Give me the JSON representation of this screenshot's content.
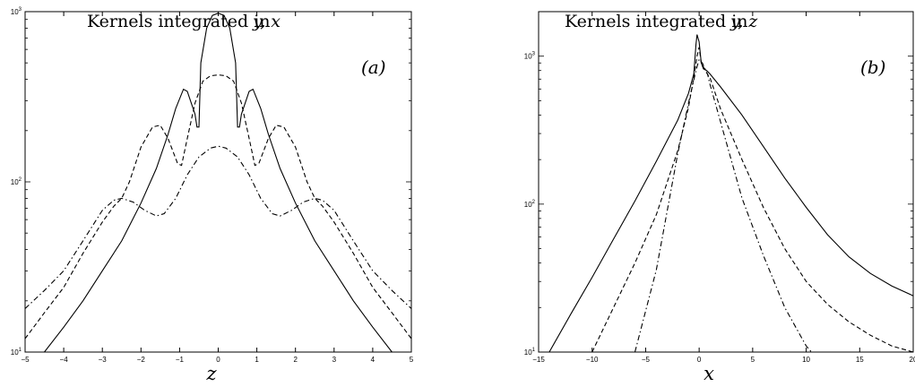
{
  "chart_data": [
    {
      "type": "line",
      "title_text": "Kernels integrated in ",
      "title_math": "y, x",
      "panel_label": "(a)",
      "xlabel": "z",
      "xlim": [
        -5,
        5
      ],
      "ylim": [
        10,
        1000
      ],
      "yscale": "log",
      "xticks": [
        -5,
        -4,
        -3,
        -2,
        -1,
        0,
        1,
        2,
        3,
        4,
        5
      ],
      "yticks": [
        {
          "value": 10,
          "base": "10",
          "exp": "1"
        },
        {
          "value": 100,
          "base": "10",
          "exp": "2"
        },
        {
          "value": 1000,
          "base": "10",
          "exp": "3"
        }
      ],
      "series": [
        {
          "style": "solid",
          "points": [
            [
              -4.5,
              10
            ],
            [
              -4,
              14
            ],
            [
              -3.5,
              20
            ],
            [
              -3,
              30
            ],
            [
              -2.5,
              45
            ],
            [
              -2,
              75
            ],
            [
              -1.6,
              120
            ],
            [
              -1.3,
              190
            ],
            [
              -1.1,
              270
            ],
            [
              -0.9,
              350
            ],
            [
              -0.8,
              340
            ],
            [
              -0.6,
              250
            ],
            [
              -0.55,
              210
            ],
            [
              -0.5,
              210
            ],
            [
              -0.45,
              500
            ],
            [
              -0.3,
              800
            ],
            [
              -0.15,
              950
            ],
            [
              0,
              980
            ],
            [
              0.15,
              950
            ],
            [
              0.3,
              800
            ],
            [
              0.45,
              500
            ],
            [
              0.5,
              210
            ],
            [
              0.55,
              210
            ],
            [
              0.6,
              250
            ],
            [
              0.8,
              340
            ],
            [
              0.9,
              350
            ],
            [
              1.1,
              270
            ],
            [
              1.3,
              190
            ],
            [
              1.6,
              120
            ],
            [
              2,
              75
            ],
            [
              2.5,
              45
            ],
            [
              3,
              30
            ],
            [
              3.5,
              20
            ],
            [
              4,
              14
            ],
            [
              4.5,
              10
            ]
          ]
        },
        {
          "style": "dashed",
          "points": [
            [
              -5,
              12
            ],
            [
              -4.5,
              17
            ],
            [
              -4,
              24
            ],
            [
              -3.5,
              38
            ],
            [
              -3,
              58
            ],
            [
              -2.7,
              72
            ],
            [
              -2.5,
              80
            ],
            [
              -2.3,
              100
            ],
            [
              -2,
              160
            ],
            [
              -1.7,
              210
            ],
            [
              -1.5,
              215
            ],
            [
              -1.3,
              180
            ],
            [
              -1.05,
              128
            ],
            [
              -0.95,
              125
            ],
            [
              -0.8,
              180
            ],
            [
              -0.6,
              290
            ],
            [
              -0.4,
              390
            ],
            [
              -0.2,
              420
            ],
            [
              0,
              425
            ],
            [
              0.2,
              420
            ],
            [
              0.4,
              390
            ],
            [
              0.6,
              290
            ],
            [
              0.8,
              180
            ],
            [
              0.95,
              125
            ],
            [
              1.05,
              128
            ],
            [
              1.3,
              180
            ],
            [
              1.5,
              215
            ],
            [
              1.7,
              210
            ],
            [
              2,
              160
            ],
            [
              2.3,
              100
            ],
            [
              2.5,
              80
            ],
            [
              2.7,
              72
            ],
            [
              3,
              58
            ],
            [
              3.5,
              38
            ],
            [
              4,
              24
            ],
            [
              4.5,
              17
            ],
            [
              5,
              12
            ]
          ]
        },
        {
          "style": "dashdot",
          "points": [
            [
              -5,
              18
            ],
            [
              -4.5,
              23
            ],
            [
              -4,
              30
            ],
            [
              -3.5,
              45
            ],
            [
              -3,
              68
            ],
            [
              -2.7,
              78
            ],
            [
              -2.5,
              80
            ],
            [
              -2.2,
              76
            ],
            [
              -1.9,
              68
            ],
            [
              -1.6,
              63
            ],
            [
              -1.4,
              65
            ],
            [
              -1.1,
              80
            ],
            [
              -0.8,
              110
            ],
            [
              -0.5,
              140
            ],
            [
              -0.2,
              158
            ],
            [
              0,
              162
            ],
            [
              0.2,
              158
            ],
            [
              0.5,
              140
            ],
            [
              0.8,
              110
            ],
            [
              1.1,
              80
            ],
            [
              1.4,
              65
            ],
            [
              1.6,
              63
            ],
            [
              1.9,
              68
            ],
            [
              2.2,
              76
            ],
            [
              2.5,
              80
            ],
            [
              2.7,
              78
            ],
            [
              3,
              68
            ],
            [
              3.5,
              45
            ],
            [
              4,
              30
            ],
            [
              4.5,
              23
            ],
            [
              5,
              18
            ]
          ]
        }
      ]
    },
    {
      "type": "line",
      "title_text": "Kernels integrated in ",
      "title_math": "y, z",
      "panel_label": "(b)",
      "xlabel": "x",
      "xlim": [
        -15,
        20
      ],
      "ylim": [
        10,
        2000
      ],
      "yscale": "log",
      "xticks": [
        -15,
        -10,
        -5,
        0,
        5,
        10,
        15,
        20
      ],
      "yticks": [
        {
          "value": 10,
          "base": "10",
          "exp": "1"
        },
        {
          "value": 100,
          "base": "10",
          "exp": "2"
        },
        {
          "value": 1000,
          "base": "10",
          "exp": "3"
        }
      ],
      "series": [
        {
          "style": "solid",
          "points": [
            [
              -14,
              10
            ],
            [
              -12,
              18
            ],
            [
              -10,
              32
            ],
            [
              -8,
              58
            ],
            [
              -6,
              105
            ],
            [
              -4,
              195
            ],
            [
              -2,
              370
            ],
            [
              -1,
              560
            ],
            [
              -0.5,
              760
            ],
            [
              -0.3,
              1200
            ],
            [
              -0.2,
              1400
            ],
            [
              0,
              1250
            ],
            [
              0.2,
              900
            ],
            [
              0.4,
              820
            ],
            [
              0.7,
              800
            ],
            [
              1,
              760
            ],
            [
              2,
              620
            ],
            [
              4,
              400
            ],
            [
              6,
              245
            ],
            [
              8,
              150
            ],
            [
              10,
              95
            ],
            [
              12,
              62
            ],
            [
              14,
              44
            ],
            [
              16,
              34
            ],
            [
              18,
              28
            ],
            [
              20,
              24
            ]
          ]
        },
        {
          "style": "dashed",
          "points": [
            [
              -10,
              10
            ],
            [
              -8,
              20
            ],
            [
              -6,
              40
            ],
            [
              -4,
              85
            ],
            [
              -2,
              230
            ],
            [
              -1,
              450
            ],
            [
              -0.5,
              720
            ],
            [
              -0.2,
              1000
            ],
            [
              0,
              1150
            ],
            [
              0.2,
              900
            ],
            [
              0.5,
              820
            ],
            [
              0.8,
              750
            ],
            [
              1,
              720
            ],
            [
              2,
              440
            ],
            [
              4,
              200
            ],
            [
              6,
              95
            ],
            [
              8,
              50
            ],
            [
              10,
              30
            ],
            [
              12,
              21
            ],
            [
              14,
              16
            ],
            [
              16,
              13
            ],
            [
              18,
              11
            ],
            [
              20,
              10
            ]
          ]
        },
        {
          "style": "dashdot",
          "points": [
            [
              -6,
              10
            ],
            [
              -4,
              36
            ],
            [
              -2,
              220
            ],
            [
              -1,
              480
            ],
            [
              -0.3,
              800
            ],
            [
              0,
              950
            ],
            [
              0.3,
              900
            ],
            [
              0.8,
              750
            ],
            [
              1,
              650
            ],
            [
              2,
              360
            ],
            [
              4,
              110
            ],
            [
              6,
              45
            ],
            [
              8,
              20
            ],
            [
              10,
              11
            ],
            [
              10.5,
              10
            ]
          ]
        }
      ]
    }
  ]
}
